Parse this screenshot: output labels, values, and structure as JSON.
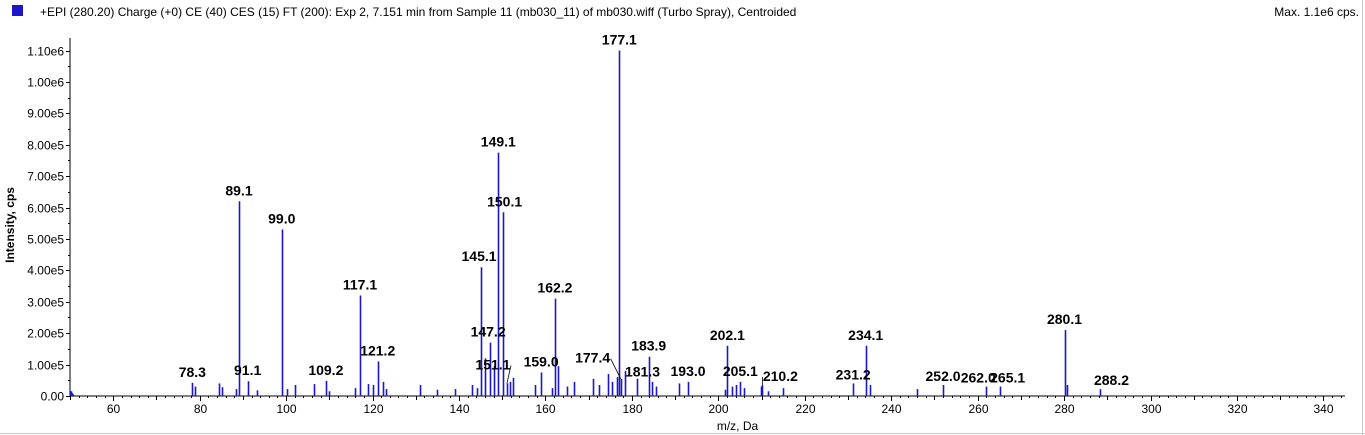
{
  "header": {
    "title": "+EPI (280.20) Charge (+0) CE (40) CES (15) FT (200): Exp 2, 7.151 min from Sample 11 (mb030_11) of mb030.wiff (Turbo Spray), Centroided",
    "max_label": "Max. 1.1e6 cps."
  },
  "colors": {
    "series": "#1c16c8",
    "axis": "#000000",
    "label": "#000000"
  },
  "chart_data": {
    "type": "bar",
    "xlabel": "m/z, Da",
    "ylabel": "Intensity, cps",
    "xlim": [
      50,
      345
    ],
    "ylim": [
      0,
      1140000
    ],
    "x_ticks": [
      60,
      80,
      100,
      120,
      140,
      160,
      180,
      200,
      220,
      240,
      260,
      280,
      300,
      320,
      340
    ],
    "y_ticks": [
      {
        "value": 0,
        "label": "0.00"
      },
      {
        "value": 100000,
        "label": "1.00e5"
      },
      {
        "value": 200000,
        "label": "2.00e5"
      },
      {
        "value": 300000,
        "label": "3.00e5"
      },
      {
        "value": 400000,
        "label": "4.00e5"
      },
      {
        "value": 500000,
        "label": "5.00e5"
      },
      {
        "value": 600000,
        "label": "6.00e5"
      },
      {
        "value": 700000,
        "label": "7.00e5"
      },
      {
        "value": 800000,
        "label": "8.00e5"
      },
      {
        "value": 900000,
        "label": "9.00e5"
      },
      {
        "value": 1000000,
        "label": "1.00e6"
      },
      {
        "value": 1100000,
        "label": "1.10e6"
      }
    ],
    "peaks": [
      {
        "x": 50.2,
        "y": 15000
      },
      {
        "x": 78.3,
        "y": 42000
      },
      {
        "x": 79.0,
        "y": 30000
      },
      {
        "x": 84.5,
        "y": 40000
      },
      {
        "x": 85.2,
        "y": 28000
      },
      {
        "x": 88.5,
        "y": 22000
      },
      {
        "x": 89.1,
        "y": 620000
      },
      {
        "x": 91.1,
        "y": 47000
      },
      {
        "x": 93.2,
        "y": 18000
      },
      {
        "x": 99.0,
        "y": 530000
      },
      {
        "x": 100.2,
        "y": 22000
      },
      {
        "x": 102.0,
        "y": 35000
      },
      {
        "x": 106.5,
        "y": 38000
      },
      {
        "x": 109.2,
        "y": 48000
      },
      {
        "x": 110.0,
        "y": 15000
      },
      {
        "x": 116.0,
        "y": 25000
      },
      {
        "x": 117.1,
        "y": 320000
      },
      {
        "x": 119.0,
        "y": 38000
      },
      {
        "x": 120.0,
        "y": 35000
      },
      {
        "x": 121.2,
        "y": 110000
      },
      {
        "x": 122.5,
        "y": 45000
      },
      {
        "x": 123.2,
        "y": 22000
      },
      {
        "x": 131.0,
        "y": 35000
      },
      {
        "x": 135.0,
        "y": 20000
      },
      {
        "x": 139.0,
        "y": 22000
      },
      {
        "x": 143.0,
        "y": 35000
      },
      {
        "x": 144.2,
        "y": 25000
      },
      {
        "x": 145.1,
        "y": 410000
      },
      {
        "x": 146.0,
        "y": 120000
      },
      {
        "x": 147.2,
        "y": 170000
      },
      {
        "x": 148.2,
        "y": 95000
      },
      {
        "x": 149.1,
        "y": 775000
      },
      {
        "x": 150.1,
        "y": 585000
      },
      {
        "x": 151.1,
        "y": 40000
      },
      {
        "x": 151.8,
        "y": 45000
      },
      {
        "x": 152.6,
        "y": 58000
      },
      {
        "x": 157.5,
        "y": 35000
      },
      {
        "x": 159.0,
        "y": 75000
      },
      {
        "x": 161.5,
        "y": 25000
      },
      {
        "x": 162.2,
        "y": 310000
      },
      {
        "x": 163.0,
        "y": 95000
      },
      {
        "x": 165.0,
        "y": 30000
      },
      {
        "x": 166.5,
        "y": 45000
      },
      {
        "x": 171.0,
        "y": 55000
      },
      {
        "x": 172.5,
        "y": 35000
      },
      {
        "x": 174.5,
        "y": 70000
      },
      {
        "x": 175.5,
        "y": 45000
      },
      {
        "x": 176.5,
        "y": 60000
      },
      {
        "x": 177.1,
        "y": 1100000
      },
      {
        "x": 177.4,
        "y": 55000
      },
      {
        "x": 178.3,
        "y": 80000
      },
      {
        "x": 181.3,
        "y": 55000
      },
      {
        "x": 183.9,
        "y": 125000
      },
      {
        "x": 184.6,
        "y": 45000
      },
      {
        "x": 185.5,
        "y": 30000
      },
      {
        "x": 191.0,
        "y": 40000
      },
      {
        "x": 193.0,
        "y": 45000
      },
      {
        "x": 201.5,
        "y": 20000
      },
      {
        "x": 202.1,
        "y": 160000
      },
      {
        "x": 203.2,
        "y": 30000
      },
      {
        "x": 204.2,
        "y": 35000
      },
      {
        "x": 205.1,
        "y": 45000
      },
      {
        "x": 206.0,
        "y": 25000
      },
      {
        "x": 209.8,
        "y": 30000
      },
      {
        "x": 210.2,
        "y": 35000
      },
      {
        "x": 211.5,
        "y": 15000
      },
      {
        "x": 215.0,
        "y": 25000
      },
      {
        "x": 231.2,
        "y": 40000
      },
      {
        "x": 234.1,
        "y": 160000
      },
      {
        "x": 235.0,
        "y": 35000
      },
      {
        "x": 246.0,
        "y": 22000
      },
      {
        "x": 252.0,
        "y": 35000
      },
      {
        "x": 262.0,
        "y": 30000
      },
      {
        "x": 265.1,
        "y": 30000
      },
      {
        "x": 280.1,
        "y": 210000
      },
      {
        "x": 280.6,
        "y": 35000
      },
      {
        "x": 288.2,
        "y": 22000
      }
    ],
    "labels": [
      {
        "x": 78.3,
        "y": 42000,
        "text": "78.3"
      },
      {
        "x": 89.1,
        "y": 620000,
        "text": "89.1"
      },
      {
        "x": 91.1,
        "y": 47000,
        "text": "91.1"
      },
      {
        "x": 99.0,
        "y": 530000,
        "text": "99.0"
      },
      {
        "x": 109.2,
        "y": 48000,
        "text": "109.2"
      },
      {
        "x": 117.1,
        "y": 320000,
        "text": "117.1"
      },
      {
        "x": 121.2,
        "y": 110000,
        "text": "121.2"
      },
      {
        "x": 145.1,
        "y": 410000,
        "text": "145.1"
      },
      {
        "x": 147.2,
        "y": 170000,
        "text": "147.2"
      },
      {
        "x": 149.1,
        "y": 775000,
        "text": "149.1"
      },
      {
        "x": 150.1,
        "y": 585000,
        "text": "150.1"
      },
      {
        "x": 151.1,
        "y": 40000,
        "text": "151.1"
      },
      {
        "x": 159.0,
        "y": 75000,
        "text": "159.0"
      },
      {
        "x": 162.2,
        "y": 310000,
        "text": "162.2"
      },
      {
        "x": 177.1,
        "y": 1100000,
        "text": "177.1"
      },
      {
        "x": 177.4,
        "y": 55000,
        "text": "177.4"
      },
      {
        "x": 181.3,
        "y": 55000,
        "text": "181.3"
      },
      {
        "x": 183.9,
        "y": 125000,
        "text": "183.9"
      },
      {
        "x": 193.0,
        "y": 45000,
        "text": "193.0"
      },
      {
        "x": 202.1,
        "y": 160000,
        "text": "202.1"
      },
      {
        "x": 205.1,
        "y": 45000,
        "text": "205.1"
      },
      {
        "x": 210.2,
        "y": 35000,
        "text": "210.2"
      },
      {
        "x": 231.2,
        "y": 40000,
        "text": "231.2"
      },
      {
        "x": 234.1,
        "y": 160000,
        "text": "234.1"
      },
      {
        "x": 252.0,
        "y": 35000,
        "text": "252.0"
      },
      {
        "x": 262.0,
        "y": 30000,
        "text": "262.0"
      },
      {
        "x": 265.1,
        "y": 30000,
        "text": "265.1"
      },
      {
        "x": 280.1,
        "y": 210000,
        "text": "280.1"
      },
      {
        "x": 288.2,
        "y": 22000,
        "text": "288.2"
      }
    ]
  }
}
